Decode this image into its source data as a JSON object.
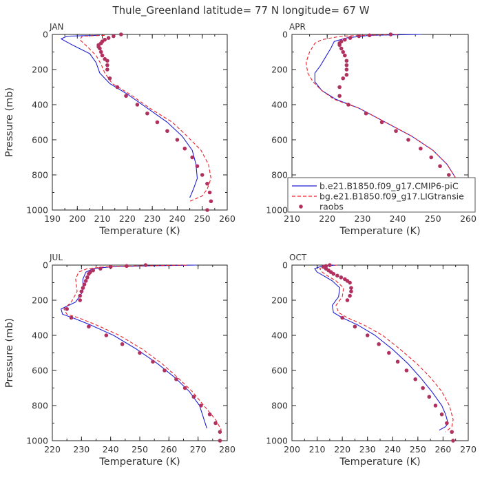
{
  "title": "Thule_Greenland  latitude= 77 N longitude= 67 W",
  "colors": {
    "model1": "#1f1fd6",
    "model2": "#e8202a",
    "raobs": "#b0315f"
  },
  "legend": {
    "location": "lower-right of APR panel",
    "entries": [
      {
        "label": "b.e21.B1850.f09_g17.CMIP6-piC",
        "style": "solid"
      },
      {
        "label": "bg.e21.B1850.f09_g17.LIGtransie",
        "style": "dashed"
      },
      {
        "label": "raobs",
        "style": "dots"
      }
    ]
  },
  "chart_data": [
    {
      "type": "line",
      "panel": "JAN",
      "xlabel": "Temperature (K)",
      "ylabel": "Pressure (mb)",
      "xlim": [
        190,
        260
      ],
      "ylim": [
        0,
        1000
      ],
      "y_inverted": true,
      "xticks": [
        190,
        200,
        210,
        220,
        230,
        240,
        250,
        260
      ],
      "yticks": [
        0,
        200,
        400,
        600,
        800,
        1000
      ],
      "series": [
        {
          "name": "b.e21.B1850.f09_g17.CMIP6-piC",
          "style": "solid",
          "x": [
            209,
            196,
            193.5,
            198,
            205,
            207.5,
            209,
            213,
            220,
            228,
            236,
            242,
            246,
            247.5,
            248,
            246.5,
            245
          ],
          "y": [
            5,
            10,
            25,
            60,
            110,
            160,
            220,
            280,
            340,
            420,
            500,
            580,
            660,
            740,
            820,
            880,
            930
          ]
        },
        {
          "name": "bg.e21.B1850.f09_g17.LIGtransie",
          "style": "dashed",
          "x": [
            211,
            202,
            201,
            204,
            207.5,
            209.5,
            211,
            214,
            221,
            229,
            238,
            244,
            249.5,
            252.5,
            253.5,
            252,
            250,
            245
          ],
          "y": [
            5,
            10,
            30,
            70,
            120,
            170,
            220,
            280,
            340,
            420,
            500,
            580,
            660,
            740,
            820,
            880,
            920,
            950
          ]
        },
        {
          "name": "raobs",
          "style": "dots",
          "x": [
            217.5,
            214.5,
            212.5,
            211,
            210,
            209.5,
            208.5,
            208.5,
            209,
            209.5,
            210,
            211,
            212,
            212,
            212,
            213,
            216,
            219.5,
            224,
            228,
            232,
            236,
            240,
            243,
            246,
            248,
            250,
            252,
            253,
            253.5,
            252
          ],
          "y": [
            0,
            10,
            20,
            30,
            40,
            50,
            60,
            70,
            80,
            100,
            120,
            140,
            150,
            175,
            200,
            250,
            300,
            350,
            400,
            450,
            500,
            550,
            600,
            650,
            700,
            750,
            800,
            850,
            900,
            950,
            1000
          ]
        }
      ]
    },
    {
      "type": "line",
      "panel": "APR",
      "xlabel": "Temperature (K)",
      "ylabel": "",
      "xlim": [
        210,
        260
      ],
      "ylim": [
        0,
        1000
      ],
      "y_inverted": true,
      "xticks": [
        210,
        220,
        230,
        240,
        250,
        260
      ],
      "yticks": [
        0,
        200,
        400,
        600,
        800,
        1000
      ],
      "series": [
        {
          "name": "b.e21.B1850.f09_g17.CMIP6-piC",
          "style": "solid",
          "x": [
            246.5,
            232,
            225.5,
            222,
            221,
            219.5,
            218,
            216.5,
            216.5,
            218.5,
            222.5,
            229,
            236.5,
            244,
            250,
            254,
            256.5,
            257.5
          ],
          "y": [
            0,
            5,
            20,
            40,
            80,
            130,
            180,
            220,
            270,
            320,
            370,
            420,
            500,
            580,
            660,
            740,
            820,
            900
          ]
        },
        {
          "name": "bg.e21.B1850.f09_g17.LIGtransie",
          "style": "dashed",
          "x": [
            240,
            224,
            218.5,
            216.5,
            215,
            214,
            214.5,
            216,
            218.5,
            222,
            229,
            236.5,
            244,
            250,
            254,
            256.5,
            257.5
          ],
          "y": [
            0,
            10,
            30,
            50,
            100,
            160,
            220,
            270,
            320,
            370,
            420,
            500,
            580,
            660,
            740,
            820,
            900
          ]
        },
        {
          "name": "raobs",
          "style": "dots",
          "x": [
            238,
            232,
            229,
            226.5,
            225,
            224,
            223.5,
            223.5,
            224,
            224.5,
            225,
            225.5,
            225.5,
            225.5,
            225.5,
            224.5,
            223.5,
            223.5,
            226,
            231,
            235.5,
            239.5,
            243,
            246.5,
            249.5,
            252,
            254.5,
            256.5,
            258
          ],
          "y": [
            0,
            5,
            10,
            20,
            30,
            40,
            50,
            60,
            80,
            100,
            120,
            150,
            175,
            200,
            230,
            250,
            300,
            350,
            400,
            450,
            500,
            550,
            600,
            650,
            700,
            750,
            800,
            900,
            1000
          ]
        }
      ]
    },
    {
      "type": "line",
      "panel": "JUL",
      "xlabel": "Temperature (K)",
      "ylabel": "Pressure (mb)",
      "xlim": [
        220,
        280
      ],
      "ylim": [
        0,
        1000
      ],
      "y_inverted": true,
      "xticks": [
        220,
        230,
        240,
        250,
        260,
        270,
        280
      ],
      "yticks": [
        0,
        200,
        400,
        600,
        800,
        1000
      ],
      "series": [
        {
          "name": "b.e21.B1850.f09_g17.CMIP6-piC",
          "style": "solid",
          "x": [
            269.5,
            250,
            240,
            234,
            231.5,
            230.5,
            230.5,
            228,
            223,
            223.5,
            227,
            233,
            241,
            249,
            256,
            262,
            267,
            270.5,
            273
          ],
          "y": [
            0,
            5,
            10,
            20,
            40,
            80,
            150,
            210,
            250,
            280,
            300,
            340,
            400,
            480,
            560,
            640,
            720,
            800,
            930
          ]
        },
        {
          "name": "bg.e21.B1850.f09_g17.LIGtransie",
          "style": "dashed",
          "x": [
            266,
            248,
            238,
            232,
            229,
            228,
            228.5,
            226.5,
            224,
            225,
            229,
            235,
            243,
            251,
            257.5,
            263,
            268,
            272,
            276,
            278
          ],
          "y": [
            0,
            5,
            10,
            20,
            40,
            80,
            150,
            210,
            250,
            280,
            300,
            340,
            400,
            480,
            560,
            640,
            720,
            800,
            880,
            940
          ]
        },
        {
          "name": "raobs",
          "style": "dots",
          "x": [
            252,
            245.5,
            240,
            236.5,
            234,
            233,
            232.5,
            232,
            231.5,
            231,
            230.5,
            230,
            229.5,
            229.5,
            225,
            226.5,
            232.5,
            238.5,
            244,
            250,
            254.5,
            258.5,
            262.5,
            265.5,
            268.5,
            271,
            274,
            276,
            277.5,
            277.5
          ],
          "y": [
            0,
            5,
            10,
            20,
            30,
            40,
            50,
            70,
            90,
            110,
            130,
            150,
            175,
            200,
            250,
            300,
            350,
            400,
            450,
            500,
            550,
            600,
            650,
            700,
            750,
            800,
            850,
            900,
            950,
            1000
          ]
        }
      ]
    },
    {
      "type": "line",
      "panel": "OCT",
      "xlabel": "Temperature (K)",
      "ylabel": "",
      "xlim": [
        200,
        270
      ],
      "ylim": [
        0,
        1000
      ],
      "y_inverted": true,
      "xticks": [
        200,
        210,
        220,
        230,
        240,
        250,
        260,
        270
      ],
      "yticks": [
        0,
        200,
        400,
        600,
        800,
        1000
      ],
      "series": [
        {
          "name": "b.e21.B1850.f09_g17.CMIP6-piC",
          "style": "solid",
          "x": [
            218,
            212,
            209,
            210,
            212.5,
            216,
            219,
            218.5,
            216,
            216.5,
            220,
            226,
            233,
            240,
            246,
            251,
            255.5,
            259.5,
            261,
            262,
            261,
            258.5
          ],
          "y": [
            0,
            5,
            20,
            40,
            60,
            90,
            130,
            180,
            230,
            270,
            300,
            340,
            400,
            480,
            560,
            640,
            720,
            800,
            850,
            900,
            920,
            940
          ]
        },
        {
          "name": "bg.e21.B1850.f09_g17.LIGtransie",
          "style": "dashed",
          "x": [
            218,
            213,
            211,
            212,
            214,
            217.5,
            220.5,
            220,
            217.5,
            218.5,
            222,
            228.5,
            236,
            243,
            249.5,
            255,
            259.5,
            262.5,
            264,
            263.5,
            261
          ],
          "y": [
            0,
            5,
            20,
            40,
            60,
            90,
            130,
            180,
            230,
            270,
            300,
            340,
            400,
            480,
            560,
            640,
            720,
            800,
            880,
            920,
            950
          ]
        },
        {
          "name": "raobs",
          "style": "dots",
          "x": [
            215,
            213.5,
            212.5,
            213.5,
            214.5,
            215.5,
            216.5,
            218,
            219.5,
            221,
            222,
            223,
            223.5,
            223.5,
            223,
            222,
            220,
            225,
            230,
            234.5,
            238.5,
            242,
            245.5,
            249,
            252,
            254.5,
            257,
            259.5,
            261.5,
            263.5,
            264
          ],
          "y": [
            0,
            5,
            10,
            20,
            30,
            40,
            50,
            60,
            70,
            80,
            90,
            100,
            130,
            150,
            175,
            200,
            300,
            350,
            400,
            450,
            500,
            550,
            600,
            650,
            700,
            750,
            800,
            850,
            900,
            950,
            1000
          ]
        }
      ]
    }
  ]
}
